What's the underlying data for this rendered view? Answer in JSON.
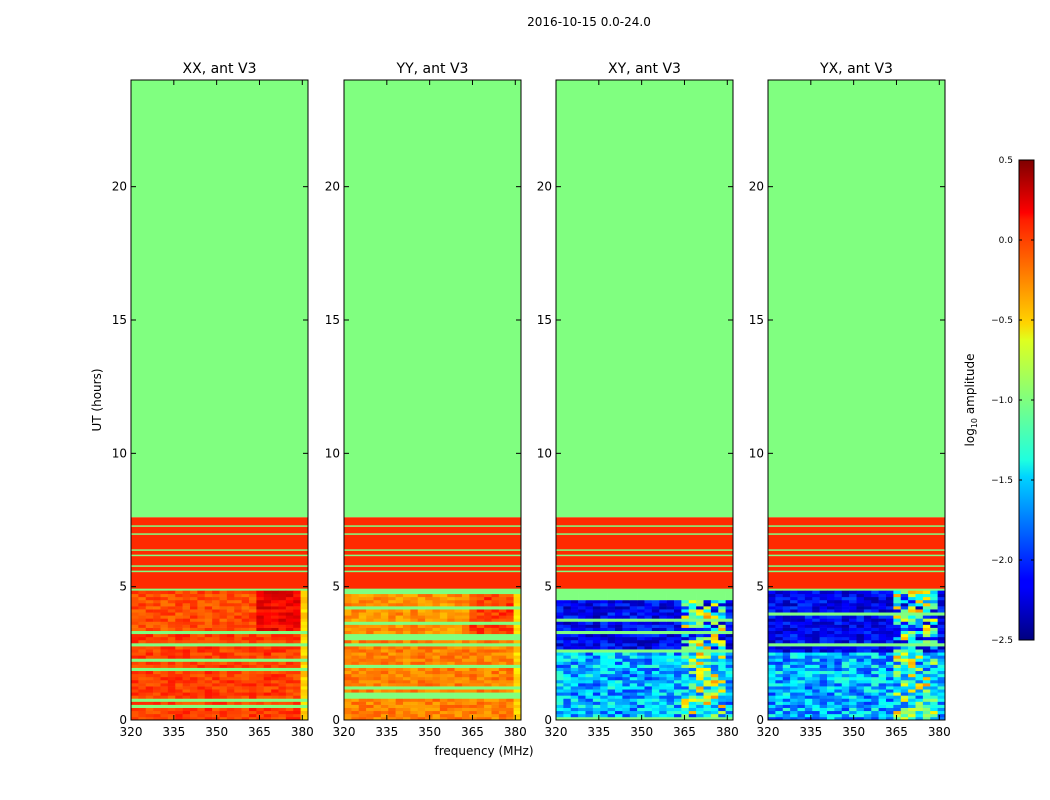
{
  "figure_title": "2016-10-15 0.0-24.0",
  "chart_data": {
    "type": "heatmap",
    "ylabel": "UT (hours)",
    "xlabel": "frequency (MHz)",
    "ylim": [
      0,
      24
    ],
    "xlim": [
      320,
      382
    ],
    "x_ticks": [
      320,
      335,
      350,
      365,
      380
    ],
    "y_ticks": [
      0,
      5,
      10,
      15,
      20
    ],
    "panels": [
      {
        "title": "XX, ant V3",
        "kind": "auto",
        "base_low": -0.1,
        "peak": 0.3
      },
      {
        "title": "YY, ant V3",
        "kind": "auto",
        "base_low": -0.3,
        "peak": 0.1
      },
      {
        "title": "XY, ant V3",
        "kind": "cross"
      },
      {
        "title": "YX, ant V3",
        "kind": "cross"
      }
    ],
    "bands": {
      "fill_value": -1.0,
      "flag_value": -1.0,
      "fill_range_hours": [
        7.6,
        24
      ],
      "rfi_range_hours": [
        4.85,
        7.6
      ],
      "rfi_value": 0.0,
      "data_range_hours": [
        0,
        4.85
      ],
      "bright_freq_range_mhz": [
        364,
        380
      ]
    },
    "colorbar": {
      "label": "log10 amplitude",
      "vmin": -2.5,
      "vmax": 0.5,
      "ticks": [
        "0.5",
        "0.0",
        "−0.5",
        "−1.0",
        "−1.5",
        "−2.0",
        "−2.5"
      ],
      "tick_values": [
        0.5,
        0.0,
        -0.5,
        -1.0,
        -1.5,
        -2.0,
        -2.5
      ],
      "colormap": "jet"
    }
  }
}
